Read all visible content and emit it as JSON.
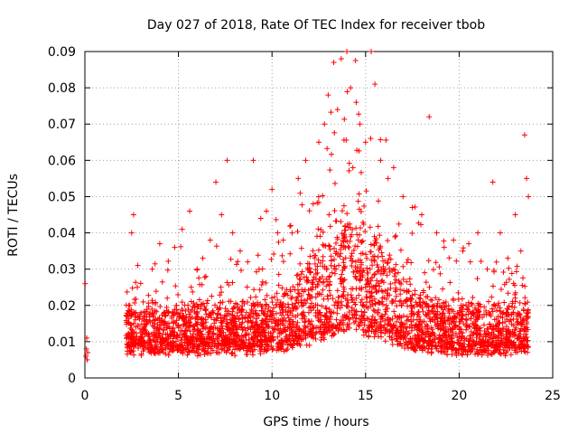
{
  "chart_data": {
    "type": "scatter",
    "title": "Day 027 of 2018, Rate Of TEC Index for receiver tbob",
    "xlabel": "GPS time / hours",
    "ylabel": "ROTI / TECUs",
    "xlim": [
      0,
      25
    ],
    "ylim": [
      0,
      0.09
    ],
    "xticks": [
      "0",
      "5",
      "10",
      "15",
      "20",
      "25"
    ],
    "yticks": [
      "0",
      "0.01",
      "0.02",
      "0.03",
      "0.04",
      "0.05",
      "0.06",
      "0.07",
      "0.08",
      "0.09"
    ],
    "grid": true,
    "marker": "+",
    "color": "#ff0000",
    "series": [
      {
        "points": [
          [
            0.02,
            0.026
          ],
          [
            0.05,
            0.006
          ],
          [
            0.08,
            0.008
          ],
          [
            0.1,
            0.011
          ],
          [
            0.12,
            0.005
          ],
          [
            0.15,
            0.007
          ],
          [
            2.3,
            0.012
          ],
          [
            2.4,
            0.02
          ],
          [
            2.5,
            0.04
          ],
          [
            2.6,
            0.045
          ],
          [
            2.8,
            0.025
          ],
          [
            3.0,
            0.018
          ],
          [
            3.3,
            0.015
          ],
          [
            3.6,
            0.03
          ],
          [
            4.0,
            0.037
          ],
          [
            4.4,
            0.022
          ],
          [
            4.8,
            0.036
          ],
          [
            5.2,
            0.041
          ],
          [
            5.6,
            0.046
          ],
          [
            6.0,
            0.03
          ],
          [
            6.3,
            0.033
          ],
          [
            6.7,
            0.038
          ],
          [
            7.0,
            0.054
          ],
          [
            7.3,
            0.045
          ],
          [
            7.6,
            0.06
          ],
          [
            7.9,
            0.04
          ],
          [
            8.3,
            0.035
          ],
          [
            8.7,
            0.032
          ],
          [
            9.0,
            0.06
          ],
          [
            9.4,
            0.044
          ],
          [
            9.7,
            0.046
          ],
          [
            10.0,
            0.052
          ],
          [
            10.3,
            0.04
          ],
          [
            10.6,
            0.038
          ],
          [
            11.0,
            0.042
          ],
          [
            11.4,
            0.055
          ],
          [
            11.8,
            0.06
          ],
          [
            12.2,
            0.048
          ],
          [
            12.5,
            0.065
          ],
          [
            12.8,
            0.07
          ],
          [
            13.0,
            0.078
          ],
          [
            13.3,
            0.087
          ],
          [
            13.5,
            0.074
          ],
          [
            13.7,
            0.088
          ],
          [
            14.0,
            0.09
          ],
          [
            14.2,
            0.08
          ],
          [
            14.5,
            0.076
          ],
          [
            14.7,
            0.07
          ],
          [
            15.0,
            0.065
          ],
          [
            15.3,
            0.09
          ],
          [
            15.5,
            0.081
          ],
          [
            15.8,
            0.06
          ],
          [
            16.2,
            0.055
          ],
          [
            16.5,
            0.058
          ],
          [
            17.0,
            0.05
          ],
          [
            17.5,
            0.047
          ],
          [
            18.0,
            0.045
          ],
          [
            18.4,
            0.072
          ],
          [
            18.8,
            0.04
          ],
          [
            19.2,
            0.036
          ],
          [
            19.7,
            0.038
          ],
          [
            20.2,
            0.035
          ],
          [
            20.6,
            0.032
          ],
          [
            21.0,
            0.04
          ],
          [
            21.5,
            0.03
          ],
          [
            21.8,
            0.054
          ],
          [
            22.2,
            0.04
          ],
          [
            22.6,
            0.033
          ],
          [
            23.0,
            0.045
          ],
          [
            23.3,
            0.035
          ],
          [
            23.5,
            0.067
          ],
          [
            23.6,
            0.055
          ],
          [
            23.7,
            0.05
          ]
        ]
      }
    ]
  }
}
